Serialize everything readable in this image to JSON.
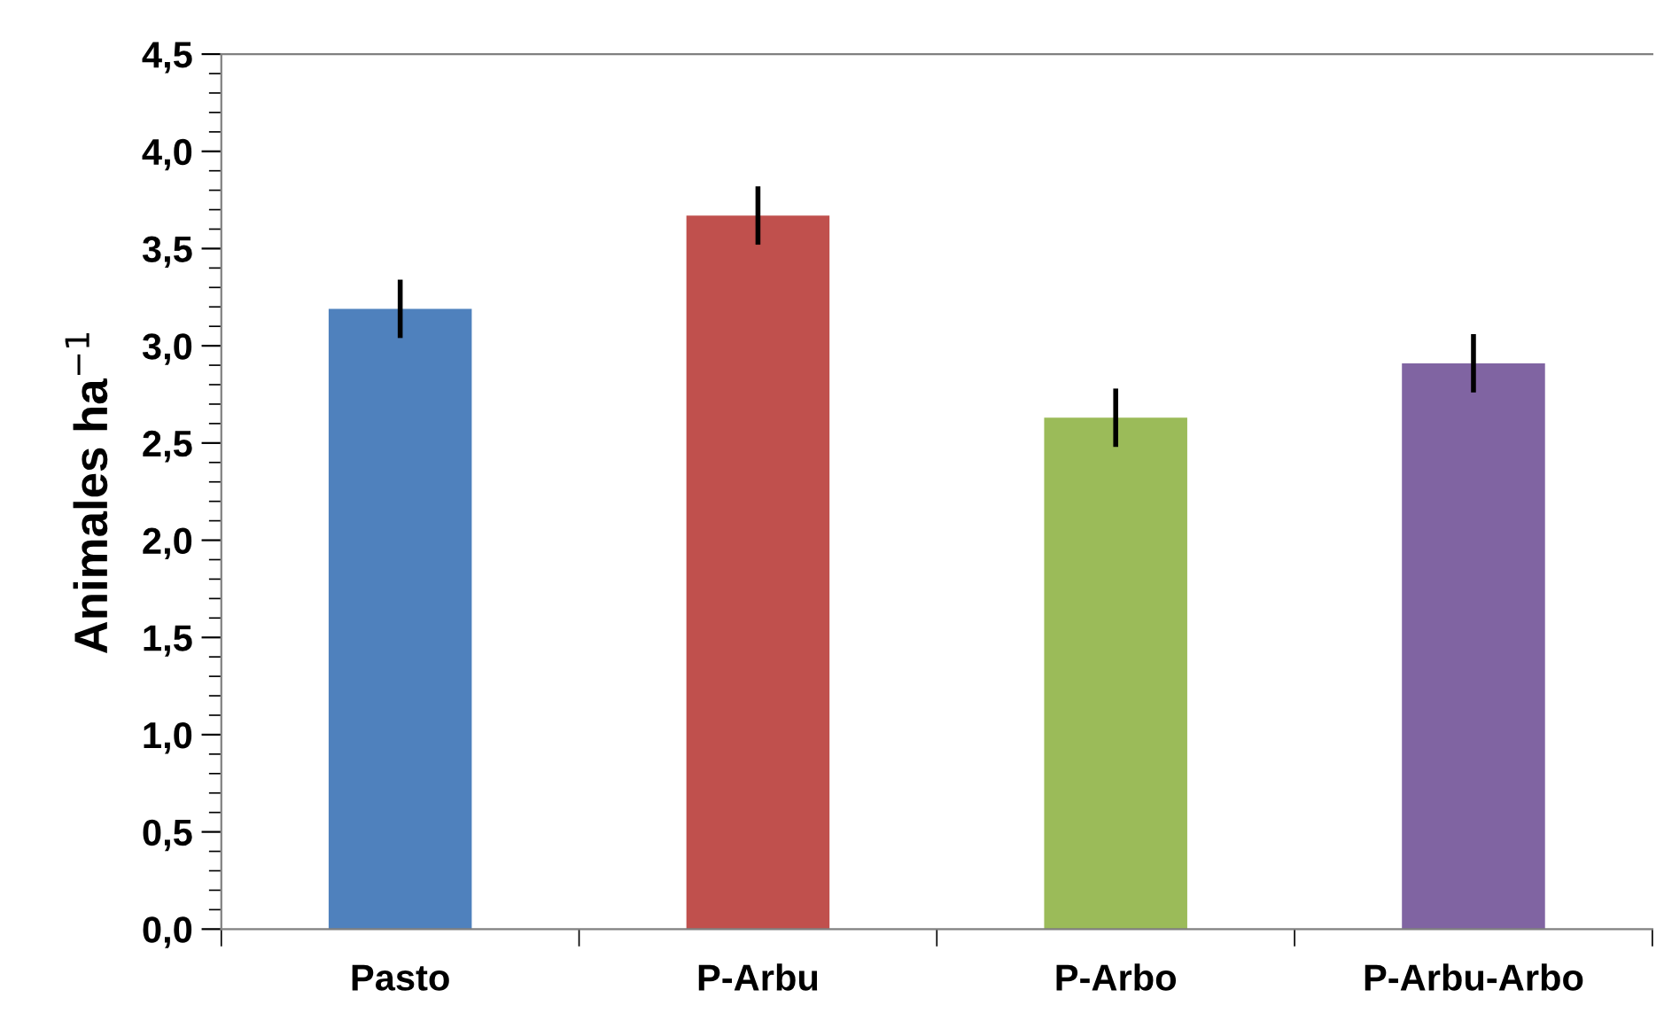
{
  "chart_data": {
    "type": "bar",
    "ylabel": "Animales ha$^{−1}$",
    "categories": [
      "Pasto",
      "P-Arbu",
      "P-Arbo",
      "P-Arbu-Arbo"
    ],
    "values": [
      3.19,
      3.67,
      2.63,
      2.91
    ],
    "errors": [
      0.15,
      0.15,
      0.15,
      0.15
    ],
    "colors": [
      "#4f81bd",
      "#c0504d",
      "#9bbb59",
      "#8064a2"
    ],
    "ylim": [
      0,
      4.5
    ],
    "yticks": [
      {
        "value": 0,
        "label": "0,0"
      },
      {
        "value": 0.5,
        "label": "0,5"
      },
      {
        "value": 1,
        "label": "1,0"
      },
      {
        "value": 1.5,
        "label": "1,5"
      },
      {
        "value": 2,
        "label": "2,0"
      },
      {
        "value": 2.5,
        "label": "2,5"
      },
      {
        "value": 3,
        "label": "3,0"
      },
      {
        "value": 3.5,
        "label": "3,5"
      },
      {
        "value": 4,
        "label": "4,0"
      },
      {
        "value": 4.5,
        "label": "4,5"
      }
    ],
    "grid": false,
    "legend": false
  }
}
